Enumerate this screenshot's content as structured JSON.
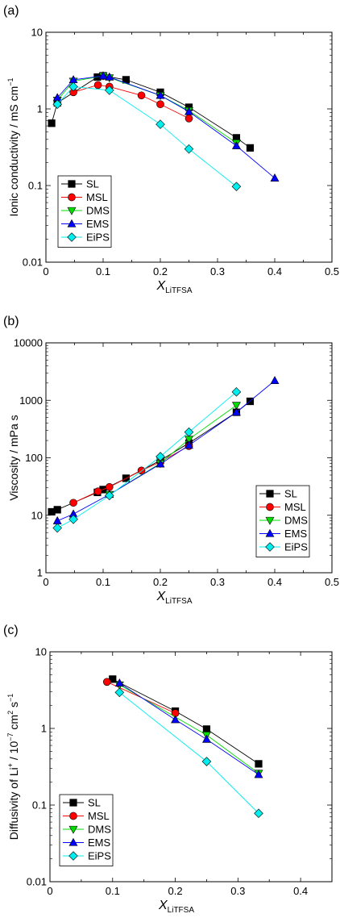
{
  "chart_data": [
    {
      "type": "line",
      "panel_label": "(a)",
      "ylabel": "Ionic conductivity / mS cm⁻¹",
      "ylabel_parts": {
        "main": "Ionic conductivity / mS cm",
        "sup": "−1"
      },
      "xlabel": {
        "main": "X",
        "sub": "LiTFSA"
      },
      "xlim": [
        0,
        0.5
      ],
      "ylim": [
        0.01,
        10
      ],
      "yscale": "log",
      "xticks": [
        "0",
        "0.1",
        "0.2",
        "0.3",
        "0.4",
        "0.5"
      ],
      "yticks": [
        "0.01",
        "0.1",
        "1",
        "10"
      ],
      "legend_position": "lower-left",
      "series": [
        {
          "name": "SL",
          "color": "#000000",
          "marker": "square",
          "x": [
            0.01,
            0.02,
            0.09,
            0.1,
            0.14,
            0.2,
            0.25,
            0.333,
            0.357
          ],
          "y": [
            0.65,
            1.2,
            2.6,
            2.7,
            2.4,
            1.65,
            1.05,
            0.42,
            0.31
          ]
        },
        {
          "name": "MSL",
          "color": "#ff0000",
          "marker": "circle",
          "x": [
            0.048,
            0.091,
            0.111,
            0.167,
            0.2,
            0.25
          ],
          "y": [
            1.65,
            2.05,
            1.95,
            1.5,
            1.15,
            0.75
          ]
        },
        {
          "name": "DMS",
          "color": "#00dd00",
          "marker": "triangle-down",
          "x": [
            0.02,
            0.048,
            0.1,
            0.111,
            0.2,
            0.25,
            0.333
          ],
          "y": [
            1.3,
            2.3,
            2.7,
            2.55,
            1.5,
            0.95,
            0.36
          ]
        },
        {
          "name": "EMS",
          "color": "#0000ff",
          "marker": "triangle-up",
          "x": [
            0.02,
            0.048,
            0.1,
            0.111,
            0.2,
            0.25,
            0.333,
            0.4
          ],
          "y": [
            1.4,
            2.4,
            2.7,
            2.6,
            1.5,
            0.92,
            0.33,
            0.125
          ]
        },
        {
          "name": "EiPS",
          "color": "#00eeee",
          "marker": "diamond",
          "x": [
            0.02,
            0.048,
            0.111,
            0.2,
            0.25,
            0.333
          ],
          "y": [
            1.15,
            1.95,
            1.75,
            0.63,
            0.3,
            0.097
          ]
        }
      ]
    },
    {
      "type": "line",
      "panel_label": "(b)",
      "ylabel": "Viscosity / mPa s",
      "ylabel_parts": {
        "main": "Viscosity / mPa s",
        "sup": ""
      },
      "xlabel": {
        "main": "X",
        "sub": "LiTFSA"
      },
      "xlim": [
        0,
        0.5
      ],
      "ylim": [
        1,
        10000
      ],
      "yscale": "log",
      "xticks": [
        "0",
        "0.1",
        "0.2",
        "0.3",
        "0.4",
        "0.5"
      ],
      "yticks": [
        "1",
        "10",
        "100",
        "1000",
        "10000"
      ],
      "legend_position": "lower-right",
      "series": [
        {
          "name": "SL",
          "color": "#000000",
          "marker": "square",
          "x": [
            0.01,
            0.02,
            0.09,
            0.1,
            0.14,
            0.2,
            0.25,
            0.333,
            0.357
          ],
          "y": [
            11.5,
            12.5,
            25,
            28,
            44,
            90,
            180,
            620,
            960
          ]
        },
        {
          "name": "MSL",
          "color": "#ff0000",
          "marker": "circle",
          "x": [
            0.048,
            0.091,
            0.111,
            0.167,
            0.2,
            0.25
          ],
          "y": [
            16.5,
            26,
            31,
            60,
            85,
            160
          ]
        },
        {
          "name": "DMS",
          "color": "#00dd00",
          "marker": "triangle-down",
          "x": [
            0.111,
            0.2,
            0.25,
            0.333
          ],
          "y": [
            23,
            80,
            210,
            820
          ]
        },
        {
          "name": "EMS",
          "color": "#0000ff",
          "marker": "triangle-up",
          "x": [
            0.02,
            0.048,
            0.111,
            0.2,
            0.25,
            0.333,
            0.4
          ],
          "y": [
            8,
            10.5,
            23,
            78,
            165,
            620,
            2200
          ]
        },
        {
          "name": "EiPS",
          "color": "#00eeee",
          "marker": "diamond",
          "x": [
            0.02,
            0.048,
            0.111,
            0.2,
            0.25,
            0.333
          ],
          "y": [
            6,
            8.5,
            22,
            105,
            280,
            1400
          ]
        }
      ]
    },
    {
      "type": "line",
      "panel_label": "(c)",
      "ylabel": "Diffusivity of Li⁺ / 10⁻⁷ cm² s⁻¹",
      "ylabel_parts": {
        "main": "Diffusivity of Li",
        "sup": "+"
      },
      "xlabel": {
        "main": "X",
        "sub": "LiTFSA"
      },
      "xlim": [
        0,
        0.45
      ],
      "ylim": [
        0.01,
        10
      ],
      "yscale": "log",
      "xticks": [
        "0",
        "0.1",
        "0.2",
        "0.3",
        "0.4"
      ],
      "yticks": [
        "0.01",
        "0.1",
        "1",
        "10"
      ],
      "legend_position": "lower-left",
      "series": [
        {
          "name": "SL",
          "color": "#000000",
          "marker": "square",
          "x": [
            0.1,
            0.2,
            0.25,
            0.333
          ],
          "y": [
            4.4,
            1.68,
            0.98,
            0.345
          ]
        },
        {
          "name": "MSL",
          "color": "#ff0000",
          "marker": "circle",
          "x": [
            0.091,
            0.2
          ],
          "y": [
            4.05,
            1.58
          ]
        },
        {
          "name": "DMS",
          "color": "#00dd00",
          "marker": "triangle-down",
          "x": [
            0.111,
            0.25,
            0.333
          ],
          "y": [
            3.7,
            0.82,
            0.26
          ]
        },
        {
          "name": "EMS",
          "color": "#0000ff",
          "marker": "triangle-up",
          "x": [
            0.111,
            0.2,
            0.25,
            0.333
          ],
          "y": [
            3.9,
            1.3,
            0.72,
            0.25
          ]
        },
        {
          "name": "EiPS",
          "color": "#00eeee",
          "marker": "diamond",
          "x": [
            0.111,
            0.25,
            0.333
          ],
          "y": [
            2.95,
            0.37,
            0.078
          ]
        }
      ]
    }
  ]
}
